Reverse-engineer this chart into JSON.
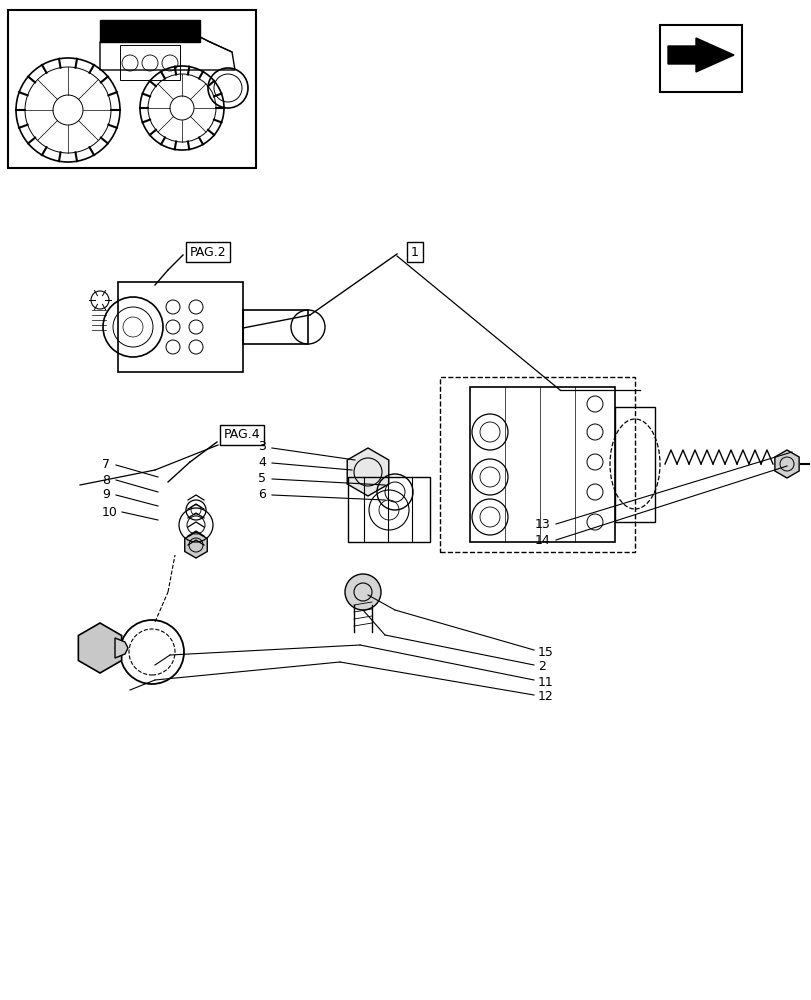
{
  "bg_color": "#ffffff",
  "line_color": "#000000",
  "label_color": "#000000",
  "title_fontsize": 9,
  "label_fontsize": 9,
  "figsize": [
    8.12,
    10.0
  ],
  "dpi": 100,
  "labels": {
    "PAG2": "PAG.2",
    "PAG4": "PAG.4",
    "num1": "1",
    "num2": "2",
    "num3": "3",
    "num4": "4",
    "num5": "5",
    "num6": "6",
    "num7": "7",
    "num8": "8",
    "num9": "9",
    "num10": "10",
    "num11": "11",
    "num12": "12",
    "num13": "13",
    "num14": "14",
    "num15": "15"
  }
}
